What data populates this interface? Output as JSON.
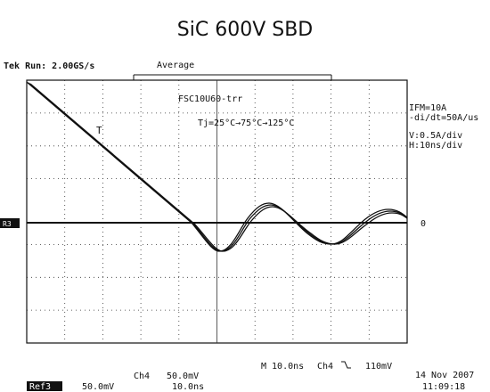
{
  "title": "SiC 600V SBD",
  "header": {
    "status": "Tek Run: 2.00GS/s",
    "mode": "Average"
  },
  "screen": {
    "device": "FSC10U60-trr",
    "temperature": "Tj=25°C→75°C→125°C",
    "trigger_marker": "T",
    "zero_label": "0",
    "ref_marker": "R3"
  },
  "settings": [
    "IFM=10A",
    "-di/dt=50A/us",
    "V:0.5A/div",
    "H:10ns/div"
  ],
  "footer": {
    "ref": "Ref3",
    "ref_scale": "50.0mV",
    "channel": "Ch4",
    "channel_scale": "50.0mV",
    "time_scale": "10.0ns",
    "main": "M 10.0ns",
    "trigger_channel": "Ch4",
    "trigger_level": "110mV",
    "date": "14 Nov 2007",
    "time": "11:09:18"
  }
}
